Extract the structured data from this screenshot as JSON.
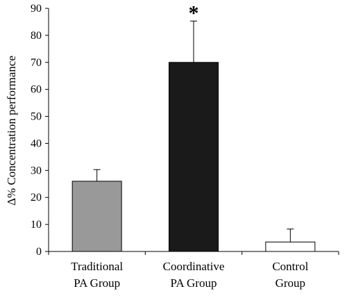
{
  "chart_data": {
    "type": "bar",
    "categories": [
      [
        "Traditional",
        "PA Group"
      ],
      [
        "Coordinative",
        "PA Group"
      ],
      [
        "Control",
        "Group"
      ]
    ],
    "values": [
      26,
      70,
      3.5
    ],
    "error_upper": [
      30.3,
      85.3,
      8.3
    ],
    "bar_colors": [
      "#999999",
      "#1a1a1a",
      "#ffffff"
    ],
    "bar_stroke": "#000000",
    "annotations": [
      {
        "category_index": 1,
        "text": "*"
      }
    ],
    "ylabel": "Δ%  Concentration performance",
    "xlabel": "",
    "title": "",
    "ylim": [
      0,
      90
    ],
    "yticks": [
      0,
      10,
      20,
      30,
      40,
      50,
      60,
      70,
      80,
      90
    ],
    "grid": false,
    "legend": "none"
  }
}
